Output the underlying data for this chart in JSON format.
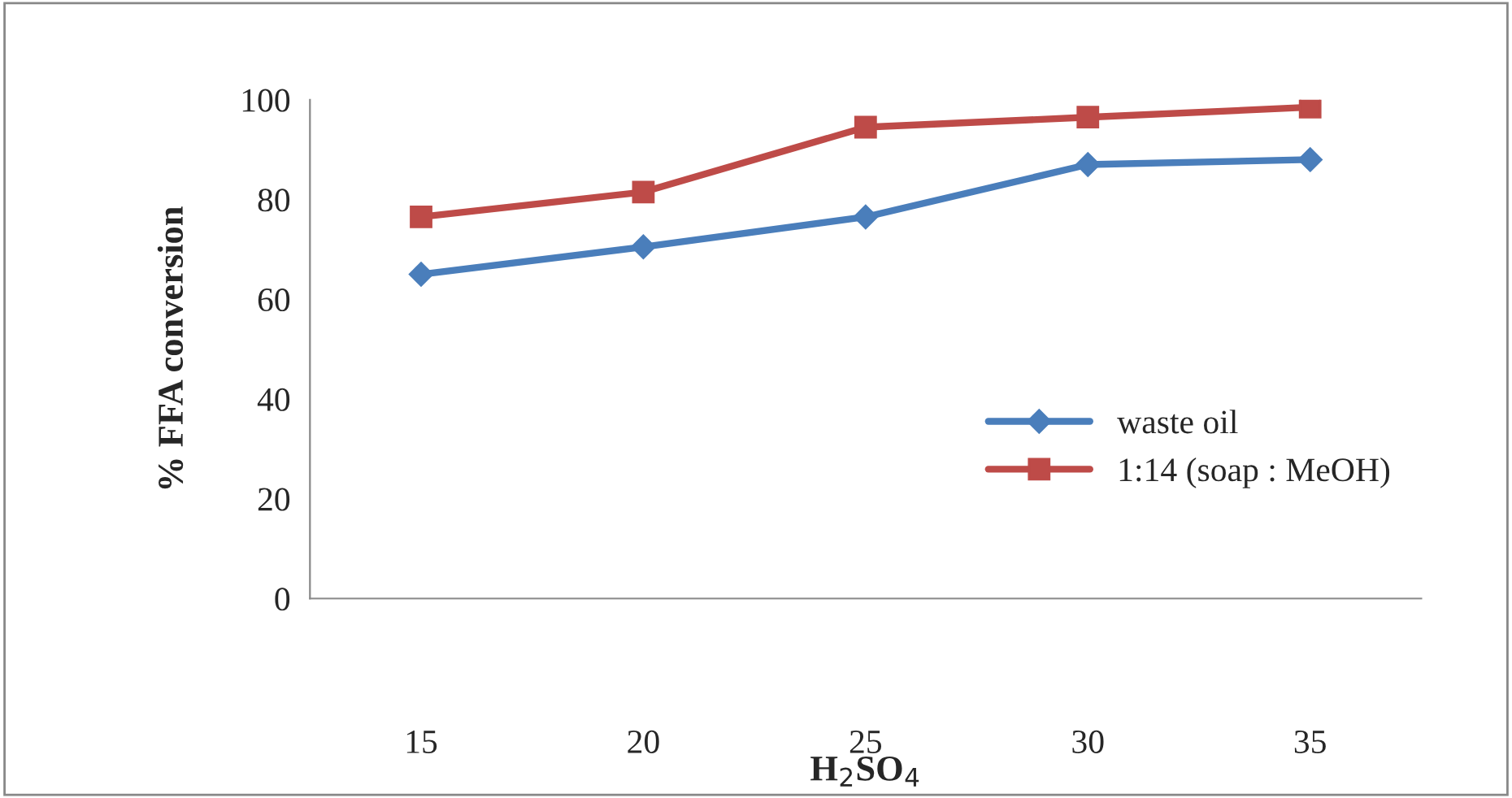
{
  "chart_data": {
    "type": "line",
    "xlabel": "H$_{2}$SO$_{4}$",
    "ylabel": "% FFA conversion",
    "categories": [
      "15",
      "20",
      "25",
      "30",
      "35"
    ],
    "series": [
      {
        "name": "waste oil",
        "color": "#4a7ebb",
        "marker": "diamond",
        "values": [
          65,
          70.5,
          76.5,
          87,
          88
        ]
      },
      {
        "name": "1:14 (soap : MeOH)",
        "color": "#be4b48",
        "marker": "square",
        "values": [
          76.5,
          81.5,
          94.5,
          96.5,
          98.5
        ]
      }
    ],
    "ylim": [
      0,
      100
    ],
    "yticks": [
      0,
      20,
      40,
      60,
      80,
      100
    ],
    "grid": false,
    "legend": "right",
    "line_style": "solid"
  }
}
